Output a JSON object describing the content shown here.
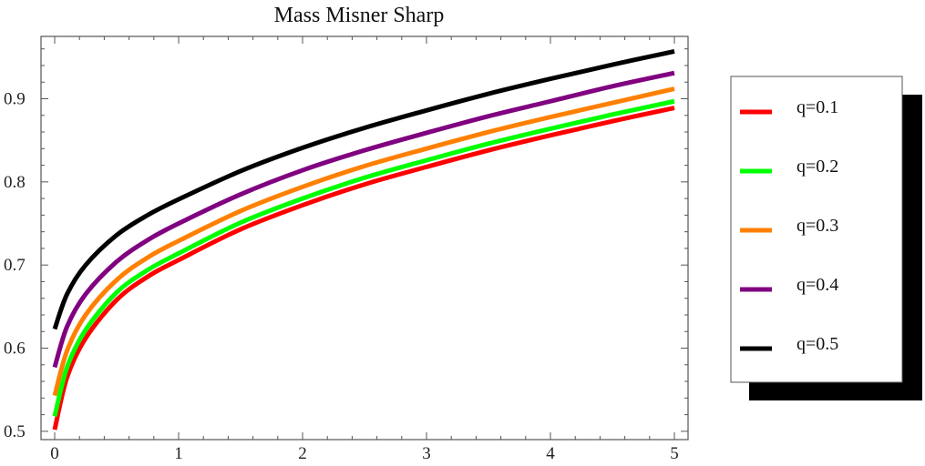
{
  "chart_data": {
    "type": "line",
    "title": "Mass Misner Sharp",
    "xlabel": "",
    "ylabel": "",
    "xlim": [
      0,
      5
    ],
    "ylim": [
      0.49,
      0.975
    ],
    "x_ticks": [
      0,
      1,
      2,
      3,
      4,
      5
    ],
    "x_tick_labels": [
      "0",
      "1",
      "2",
      "3",
      "4",
      "5"
    ],
    "y_ticks": [
      0.5,
      0.6,
      0.7,
      0.8,
      0.9
    ],
    "y_tick_labels": [
      "0.5",
      "0.6",
      "0.7",
      "0.8",
      "0.9"
    ],
    "grid": false,
    "legend_position": "right",
    "x": [
      0,
      0.1,
      0.25,
      0.5,
      0.75,
      1,
      1.5,
      2,
      2.5,
      3,
      3.5,
      4,
      4.5,
      5
    ],
    "series": [
      {
        "name": "q=0.1",
        "color": "#ff0000",
        "values": [
          0.502,
          0.565,
          0.612,
          0.658,
          0.686,
          0.706,
          0.743,
          0.772,
          0.797,
          0.818,
          0.838,
          0.856,
          0.873,
          0.889
        ]
      },
      {
        "name": "q=0.2",
        "color": "#00ff00",
        "values": [
          0.518,
          0.577,
          0.622,
          0.667,
          0.694,
          0.714,
          0.751,
          0.78,
          0.805,
          0.826,
          0.846,
          0.864,
          0.881,
          0.897
        ]
      },
      {
        "name": "q=0.3",
        "color": "#ff8000",
        "values": [
          0.543,
          0.597,
          0.64,
          0.682,
          0.709,
          0.729,
          0.765,
          0.794,
          0.819,
          0.84,
          0.86,
          0.878,
          0.895,
          0.912
        ]
      },
      {
        "name": "q=0.4",
        "color": "#800080",
        "values": [
          0.577,
          0.626,
          0.665,
          0.704,
          0.73,
          0.75,
          0.785,
          0.814,
          0.838,
          0.859,
          0.879,
          0.897,
          0.915,
          0.931
        ]
      },
      {
        "name": "q=0.5",
        "color": "#000000",
        "values": [
          0.623,
          0.665,
          0.7,
          0.736,
          0.76,
          0.779,
          0.813,
          0.841,
          0.865,
          0.886,
          0.906,
          0.924,
          0.941,
          0.957
        ]
      }
    ]
  }
}
